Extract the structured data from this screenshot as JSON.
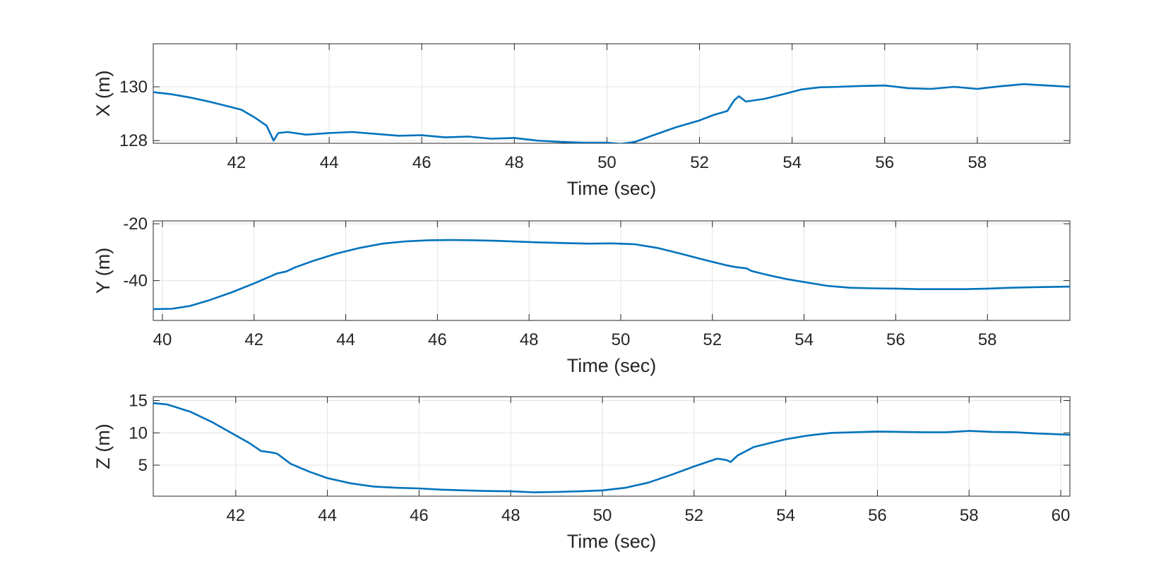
{
  "chart_data": [
    {
      "type": "line",
      "title": "",
      "xlabel": "Time (sec)",
      "ylabel": "X (m)",
      "xlim": [
        40.2,
        60.0
      ],
      "ylim": [
        127.9,
        131.6
      ],
      "xticks": [
        42,
        44,
        46,
        48,
        50,
        52,
        54,
        56,
        58
      ],
      "yticks": [
        128,
        130
      ],
      "xtick_labels": [
        "42",
        "44",
        "46",
        "48",
        "50",
        "52",
        "54",
        "56",
        "58"
      ],
      "ytick_labels": [
        "128",
        "130"
      ],
      "grid": true,
      "color": "#0072BD",
      "series": [
        {
          "x": [
            40.2,
            40.6,
            41.0,
            41.4,
            41.8,
            42.1,
            42.4,
            42.65,
            42.8,
            42.9,
            43.1,
            43.5,
            44.0,
            44.5,
            45.0,
            45.5,
            46.0,
            46.5,
            47.0,
            47.5,
            48.0,
            48.5,
            49.0,
            49.5,
            50.0,
            50.3,
            50.6,
            51.0,
            51.5,
            52.0,
            52.3,
            52.6,
            52.75,
            52.85,
            53.0,
            53.4,
            53.8,
            54.2,
            54.6,
            55.0,
            55.5,
            56.0,
            56.5,
            57.0,
            57.5,
            58.0,
            58.5,
            59.0,
            59.5,
            60.0
          ],
          "y": [
            129.8,
            129.72,
            129.6,
            129.45,
            129.28,
            129.15,
            128.85,
            128.55,
            128.0,
            128.28,
            128.32,
            128.22,
            128.28,
            128.32,
            128.25,
            128.18,
            128.2,
            128.12,
            128.15,
            128.07,
            128.1,
            128.0,
            127.95,
            127.92,
            127.92,
            127.88,
            127.95,
            128.2,
            128.5,
            128.75,
            128.95,
            129.1,
            129.5,
            129.65,
            129.45,
            129.55,
            129.72,
            129.9,
            129.98,
            130.0,
            130.03,
            130.05,
            129.95,
            129.92,
            130.0,
            129.92,
            130.02,
            130.1,
            130.05,
            130.0
          ]
        }
      ]
    },
    {
      "type": "line",
      "title": "",
      "xlabel": "Time (sec)",
      "ylabel": "Y (m)",
      "xlim": [
        39.8,
        59.8
      ],
      "ylim": [
        -54.0,
        -19.0
      ],
      "xticks": [
        40,
        42,
        44,
        46,
        48,
        50,
        52,
        54,
        56,
        58
      ],
      "yticks": [
        -40,
        -20
      ],
      "xtick_labels": [
        "40",
        "42",
        "44",
        "46",
        "48",
        "50",
        "52",
        "54",
        "56",
        "58"
      ],
      "ytick_labels": [
        "-40",
        "-20"
      ],
      "grid": true,
      "color": "#0072BD",
      "series": [
        {
          "x": [
            39.8,
            40.2,
            40.6,
            41.0,
            41.5,
            42.0,
            42.5,
            42.7,
            42.9,
            43.3,
            43.8,
            44.3,
            44.8,
            45.3,
            45.8,
            46.3,
            46.8,
            47.3,
            47.8,
            48.3,
            48.8,
            49.3,
            49.8,
            50.3,
            50.8,
            51.3,
            51.8,
            52.3,
            52.5,
            52.75,
            52.85,
            53.2,
            53.6,
            54.0,
            54.5,
            55.0,
            55.5,
            56.0,
            56.5,
            57.0,
            57.5,
            58.0,
            58.5,
            59.0,
            59.8
          ],
          "y": [
            -50.0,
            -49.9,
            -48.9,
            -47.0,
            -44.2,
            -41.0,
            -37.5,
            -36.8,
            -35.3,
            -33.0,
            -30.5,
            -28.5,
            -27.0,
            -26.2,
            -25.8,
            -25.7,
            -25.8,
            -26.0,
            -26.3,
            -26.6,
            -26.8,
            -27.0,
            -26.9,
            -27.2,
            -28.5,
            -30.5,
            -32.6,
            -34.6,
            -35.2,
            -35.7,
            -36.6,
            -38.0,
            -39.4,
            -40.5,
            -41.8,
            -42.5,
            -42.7,
            -42.8,
            -43.0,
            -43.0,
            -43.0,
            -42.8,
            -42.5,
            -42.3,
            -42.1
          ]
        }
      ]
    },
    {
      "type": "line",
      "title": "",
      "xlabel": "Time (sec)",
      "ylabel": "Z (m)",
      "xlim": [
        40.2,
        60.2
      ],
      "ylim": [
        0.2,
        15.6
      ],
      "xticks": [
        42,
        44,
        46,
        48,
        50,
        52,
        54,
        56,
        58,
        60
      ],
      "yticks": [
        5,
        10,
        15
      ],
      "xtick_labels": [
        "42",
        "44",
        "46",
        "48",
        "50",
        "52",
        "54",
        "56",
        "58",
        "60"
      ],
      "ytick_labels": [
        "5",
        "10",
        "15"
      ],
      "grid": true,
      "color": "#0072BD",
      "series": [
        {
          "x": [
            40.2,
            40.5,
            41.0,
            41.5,
            42.0,
            42.3,
            42.55,
            42.75,
            42.9,
            43.2,
            43.6,
            44.0,
            44.5,
            45.0,
            45.5,
            46.0,
            46.5,
            47.0,
            47.5,
            48.0,
            48.5,
            49.0,
            49.5,
            50.0,
            50.5,
            51.0,
            51.5,
            52.0,
            52.5,
            52.7,
            52.8,
            52.95,
            53.3,
            53.7,
            54.0,
            54.5,
            55.0,
            55.5,
            56.0,
            56.5,
            57.0,
            57.5,
            58.0,
            58.5,
            59.0,
            59.5,
            60.2
          ],
          "y": [
            14.6,
            14.4,
            13.3,
            11.6,
            9.6,
            8.4,
            7.2,
            7.0,
            6.8,
            5.2,
            4.0,
            3.0,
            2.2,
            1.7,
            1.5,
            1.4,
            1.2,
            1.1,
            1.0,
            0.95,
            0.8,
            0.85,
            0.95,
            1.1,
            1.5,
            2.3,
            3.5,
            4.8,
            6.0,
            5.8,
            5.5,
            6.5,
            7.8,
            8.5,
            9.0,
            9.6,
            10.0,
            10.1,
            10.2,
            10.15,
            10.1,
            10.1,
            10.3,
            10.15,
            10.1,
            9.9,
            9.7
          ]
        }
      ]
    }
  ]
}
